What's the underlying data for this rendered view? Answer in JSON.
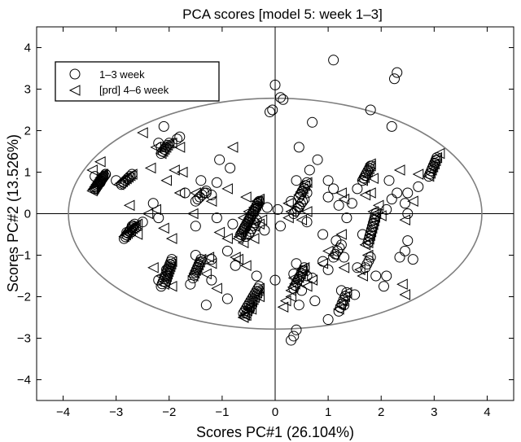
{
  "chart_data": {
    "type": "scatter",
    "title": "PCA scores [model 5: week 1–3]",
    "xlabel": "Scores PC#1 (26.104%)",
    "ylabel": "Scores PC#2 (13.526%)",
    "xlim": [
      -4.5,
      4.5
    ],
    "ylim": [
      -4.5,
      4.5
    ],
    "xticks": [
      -4,
      -3,
      -2,
      -1,
      0,
      1,
      2,
      3,
      4
    ],
    "yticks": [
      -4,
      -3,
      -2,
      -1,
      0,
      1,
      2,
      3,
      4
    ],
    "grid": false,
    "legend_position": "top-left",
    "zero_lines": true,
    "confidence_ellipse": {
      "cx": 0.0,
      "cy": 0.0,
      "rx": 3.9,
      "ry": 2.78
    },
    "series": [
      {
        "name": "1–3 week",
        "marker": "circle",
        "points": [
          [
            1.1,
            3.7
          ],
          [
            2.3,
            3.4
          ],
          [
            2.25,
            3.25
          ],
          [
            0.0,
            3.1
          ],
          [
            0.1,
            2.8
          ],
          [
            0.15,
            2.75
          ],
          [
            -0.05,
            2.5
          ],
          [
            -0.1,
            2.45
          ],
          [
            1.8,
            2.5
          ],
          [
            0.7,
            2.2
          ],
          [
            2.2,
            2.1
          ],
          [
            -2.1,
            2.1
          ],
          [
            -2.2,
            1.7
          ],
          [
            -2.15,
            1.6
          ],
          [
            -1.8,
            1.85
          ],
          [
            -1.85,
            1.8
          ],
          [
            0.45,
            1.6
          ],
          [
            -1.05,
            1.3
          ],
          [
            -0.85,
            1.1
          ],
          [
            0.8,
            1.3
          ],
          [
            0.65,
            1.05
          ],
          [
            0.4,
            0.8
          ],
          [
            -3.4,
            0.9
          ],
          [
            -3.2,
            0.95
          ],
          [
            -3.0,
            0.8
          ],
          [
            -3.3,
            0.75
          ],
          [
            -1.4,
            0.8
          ],
          [
            -1.1,
            0.75
          ],
          [
            -1.7,
            0.5
          ],
          [
            -1.3,
            0.5
          ],
          [
            -1.2,
            0.45
          ],
          [
            1.0,
            0.8
          ],
          [
            0.6,
            0.5
          ],
          [
            1.1,
            0.6
          ],
          [
            1.55,
            0.6
          ],
          [
            2.15,
            0.8
          ],
          [
            2.3,
            0.5
          ],
          [
            2.2,
            0.35
          ],
          [
            2.45,
            0.25
          ],
          [
            2.5,
            0.5
          ],
          [
            2.7,
            0.65
          ],
          [
            0.05,
            0.1
          ],
          [
            -0.15,
            0.15
          ],
          [
            0.3,
            0.3
          ],
          [
            0.45,
            0.15
          ],
          [
            1.0,
            0.4
          ],
          [
            1.2,
            0.2
          ],
          [
            1.45,
            0.25
          ],
          [
            1.35,
            -0.1
          ],
          [
            2.1,
            0.1
          ],
          [
            2.5,
            0.0
          ],
          [
            -2.3,
            0.25
          ],
          [
            -2.2,
            -0.1
          ],
          [
            -2.5,
            -0.2
          ],
          [
            -2.7,
            -0.3
          ],
          [
            -2.8,
            -0.45
          ],
          [
            -1.5,
            -0.3
          ],
          [
            -1.1,
            -0.1
          ],
          [
            -0.8,
            -0.25
          ],
          [
            -0.55,
            -0.55
          ],
          [
            -0.2,
            -0.4
          ],
          [
            0.1,
            -0.3
          ],
          [
            0.6,
            -0.2
          ],
          [
            0.9,
            -0.5
          ],
          [
            1.15,
            -0.65
          ],
          [
            1.65,
            -0.5
          ],
          [
            2.5,
            -0.65
          ],
          [
            2.45,
            -0.9
          ],
          [
            2.35,
            -1.05
          ],
          [
            -1.5,
            -1.0
          ],
          [
            -1.2,
            -1.1
          ],
          [
            -0.9,
            -0.9
          ],
          [
            -0.75,
            -1.25
          ],
          [
            -0.35,
            -1.5
          ],
          [
            0.0,
            -1.6
          ],
          [
            0.4,
            -1.2
          ],
          [
            0.6,
            -1.5
          ],
          [
            0.9,
            -1.15
          ],
          [
            1.0,
            -1.35
          ],
          [
            1.3,
            -1.05
          ],
          [
            1.55,
            -1.3
          ],
          [
            1.9,
            -1.5
          ],
          [
            2.1,
            -1.5
          ],
          [
            2.05,
            -1.75
          ],
          [
            2.6,
            -1.1
          ],
          [
            -2.05,
            -1.35
          ],
          [
            -2.2,
            -1.6
          ],
          [
            -1.6,
            -1.7
          ],
          [
            -1.2,
            -1.6
          ],
          [
            0.5,
            -1.85
          ],
          [
            0.75,
            -2.1
          ],
          [
            1.25,
            -1.85
          ],
          [
            1.5,
            -1.95
          ],
          [
            1.3,
            -2.2
          ],
          [
            0.45,
            -2.2
          ],
          [
            1.0,
            -2.55
          ],
          [
            0.4,
            -2.8
          ],
          [
            0.35,
            -2.95
          ],
          [
            0.3,
            -3.05
          ],
          [
            -1.3,
            -2.2
          ],
          [
            -0.9,
            -2.05
          ],
          [
            0.7,
            -1.55
          ],
          [
            0.35,
            -1.45
          ]
        ]
      },
      {
        "name": "[prd] 4–6 week",
        "marker": "triangle-left",
        "points": [
          [
            -2.5,
            1.95
          ],
          [
            -2.25,
            1.6
          ],
          [
            -1.95,
            1.7
          ],
          [
            -1.8,
            1.6
          ],
          [
            -0.8,
            1.6
          ],
          [
            -3.3,
            1.25
          ],
          [
            -3.45,
            1.05
          ],
          [
            -2.35,
            1.1
          ],
          [
            -1.9,
            1.05
          ],
          [
            -1.75,
            1.0
          ],
          [
            -2.05,
            0.8
          ],
          [
            -1.8,
            0.5
          ],
          [
            -1.5,
            0.5
          ],
          [
            -0.9,
            0.6
          ],
          [
            -0.55,
            0.4
          ],
          [
            -1.2,
            0.3
          ],
          [
            -2.75,
            0.2
          ],
          [
            -2.4,
            0.0
          ],
          [
            -2.25,
            0.1
          ],
          [
            -1.55,
            0.0
          ],
          [
            -0.35,
            0.3
          ],
          [
            -0.4,
            0.15
          ],
          [
            -0.5,
            0.05
          ],
          [
            -0.6,
            -0.1
          ],
          [
            -2.6,
            -0.5
          ],
          [
            -2.1,
            -0.35
          ],
          [
            -1.95,
            -0.6
          ],
          [
            -1.05,
            -0.45
          ],
          [
            -0.9,
            -0.6
          ],
          [
            -0.6,
            -0.7
          ],
          [
            -0.75,
            -1.05
          ],
          [
            -0.55,
            -1.25
          ],
          [
            -0.4,
            -0.3
          ],
          [
            -0.3,
            -0.25
          ],
          [
            -0.25,
            -0.15
          ],
          [
            -0.4,
            -0.6
          ],
          [
            0.25,
            0.25
          ],
          [
            0.3,
            0.05
          ],
          [
            0.25,
            -0.1
          ],
          [
            0.5,
            -0.15
          ],
          [
            0.6,
            0.05
          ],
          [
            1.25,
            0.5
          ],
          [
            1.3,
            0.35
          ],
          [
            1.7,
            0.45
          ],
          [
            1.8,
            0.5
          ],
          [
            1.85,
            0.85
          ],
          [
            1.8,
            1.2
          ],
          [
            2.35,
            1.05
          ],
          [
            2.7,
            0.95
          ],
          [
            3.0,
            1.2
          ],
          [
            3.1,
            1.45
          ],
          [
            1.95,
            0.2
          ],
          [
            1.85,
            0.05
          ],
          [
            2.0,
            -0.05
          ],
          [
            2.45,
            -0.15
          ],
          [
            2.6,
            0.3
          ],
          [
            1.25,
            -0.5
          ],
          [
            1.7,
            -0.75
          ],
          [
            1.75,
            -1.0
          ],
          [
            1.3,
            -1.3
          ],
          [
            1.6,
            -1.35
          ],
          [
            1.65,
            -1.5
          ],
          [
            2.4,
            -1.7
          ],
          [
            2.45,
            -1.95
          ],
          [
            -2.3,
            -1.3
          ],
          [
            -2.15,
            -1.5
          ],
          [
            -1.95,
            -1.75
          ],
          [
            -1.25,
            -1.05
          ],
          [
            -1.2,
            -1.2
          ],
          [
            -1.3,
            -1.45
          ],
          [
            -1.1,
            -1.8
          ],
          [
            -0.7,
            -1.1
          ],
          [
            0.35,
            -1.55
          ],
          [
            0.5,
            -1.35
          ],
          [
            0.7,
            -1.6
          ],
          [
            0.6,
            -1.75
          ],
          [
            0.3,
            -2.0
          ],
          [
            0.2,
            -2.1
          ],
          [
            0.15,
            -2.25
          ],
          [
            -0.3,
            -2.0
          ],
          [
            -0.5,
            -2.25
          ],
          [
            -0.55,
            -2.45
          ],
          [
            -0.45,
            -2.3
          ],
          [
            -0.6,
            -2.5
          ],
          [
            1.0,
            -0.9
          ],
          [
            1.1,
            -1.0
          ],
          [
            0.9,
            -1.2
          ]
        ]
      }
    ],
    "clusters": [
      {
        "marker": "triangle-left",
        "from": [
          -3.45,
          0.55
        ],
        "to": [
          -3.25,
          0.95
        ],
        "n": 14
      },
      {
        "marker": "circle",
        "from": [
          -3.4,
          0.6
        ],
        "to": [
          -3.2,
          0.95
        ],
        "n": 10
      },
      {
        "marker": "triangle-left",
        "from": [
          -2.95,
          0.7
        ],
        "to": [
          -2.7,
          0.95
        ],
        "n": 8
      },
      {
        "marker": "circle",
        "from": [
          -2.9,
          0.7
        ],
        "to": [
          -2.7,
          0.95
        ],
        "n": 6
      },
      {
        "marker": "circle",
        "from": [
          -2.85,
          -0.6
        ],
        "to": [
          -2.65,
          -0.25
        ],
        "n": 9
      },
      {
        "marker": "triangle-left",
        "from": [
          -2.85,
          -0.55
        ],
        "to": [
          -2.6,
          -0.25
        ],
        "n": 9
      },
      {
        "marker": "circle",
        "from": [
          -2.15,
          1.45
        ],
        "to": [
          -2.0,
          1.7
        ],
        "n": 6
      },
      {
        "marker": "triangle-left",
        "from": [
          -2.15,
          1.45
        ],
        "to": [
          -2.0,
          1.7
        ],
        "n": 6
      },
      {
        "marker": "circle",
        "from": [
          -2.15,
          -1.75
        ],
        "to": [
          -1.95,
          -1.1
        ],
        "n": 12
      },
      {
        "marker": "triangle-left",
        "from": [
          -2.1,
          -1.7
        ],
        "to": [
          -1.95,
          -1.15
        ],
        "n": 10
      },
      {
        "marker": "circle",
        "from": [
          -1.55,
          -1.55
        ],
        "to": [
          -1.4,
          -1.1
        ],
        "n": 8
      },
      {
        "marker": "triangle-left",
        "from": [
          -1.55,
          -1.5
        ],
        "to": [
          -1.4,
          -1.1
        ],
        "n": 7
      },
      {
        "marker": "circle",
        "from": [
          -1.5,
          0.3
        ],
        "to": [
          -1.3,
          0.55
        ],
        "n": 6
      },
      {
        "marker": "triangle-left",
        "from": [
          -0.7,
          -0.6
        ],
        "to": [
          -0.3,
          0.35
        ],
        "n": 20
      },
      {
        "marker": "circle",
        "from": [
          -0.65,
          -0.5
        ],
        "to": [
          -0.3,
          0.3
        ],
        "n": 14
      },
      {
        "marker": "circle",
        "from": [
          -0.5,
          -0.5
        ],
        "to": [
          -0.35,
          -0.15
        ],
        "n": 6
      },
      {
        "marker": "triangle-left",
        "from": [
          -0.6,
          -2.5
        ],
        "to": [
          -0.3,
          -1.8
        ],
        "n": 14
      },
      {
        "marker": "circle",
        "from": [
          -0.6,
          -2.4
        ],
        "to": [
          -0.3,
          -1.75
        ],
        "n": 12
      },
      {
        "marker": "circle",
        "from": [
          0.35,
          -1.8
        ],
        "to": [
          0.55,
          -1.3
        ],
        "n": 8
      },
      {
        "marker": "triangle-left",
        "from": [
          0.3,
          -1.85
        ],
        "to": [
          0.55,
          -1.3
        ],
        "n": 8
      },
      {
        "marker": "circle",
        "from": [
          0.35,
          0.0
        ],
        "to": [
          0.55,
          0.35
        ],
        "n": 7
      },
      {
        "marker": "circle",
        "from": [
          0.45,
          0.4
        ],
        "to": [
          0.6,
          0.75
        ],
        "n": 6
      },
      {
        "marker": "triangle-left",
        "from": [
          0.45,
          0.45
        ],
        "to": [
          0.6,
          0.75
        ],
        "n": 5
      },
      {
        "marker": "circle",
        "from": [
          1.65,
          0.8
        ],
        "to": [
          1.8,
          1.15
        ],
        "n": 7
      },
      {
        "marker": "triangle-left",
        "from": [
          1.65,
          0.8
        ],
        "to": [
          1.8,
          1.15
        ],
        "n": 6
      },
      {
        "marker": "circle",
        "from": [
          1.75,
          -0.7
        ],
        "to": [
          1.9,
          0.0
        ],
        "n": 10
      },
      {
        "marker": "triangle-left",
        "from": [
          1.75,
          -0.7
        ],
        "to": [
          1.9,
          0.0
        ],
        "n": 9
      },
      {
        "marker": "circle",
        "from": [
          1.1,
          -1.05
        ],
        "to": [
          1.25,
          -0.75
        ],
        "n": 5
      },
      {
        "marker": "circle",
        "from": [
          2.9,
          0.9
        ],
        "to": [
          3.05,
          1.35
        ],
        "n": 8
      },
      {
        "marker": "triangle-left",
        "from": [
          2.9,
          0.9
        ],
        "to": [
          3.05,
          1.35
        ],
        "n": 7
      },
      {
        "marker": "circle",
        "from": [
          1.2,
          -2.35
        ],
        "to": [
          1.35,
          -1.9
        ],
        "n": 6
      },
      {
        "marker": "triangle-left",
        "from": [
          1.2,
          -2.3
        ],
        "to": [
          1.35,
          -1.9
        ],
        "n": 5
      },
      {
        "marker": "circle",
        "from": [
          1.7,
          -1.3
        ],
        "to": [
          1.8,
          -1.05
        ],
        "n": 4
      }
    ]
  },
  "legend": {
    "items": [
      {
        "label": "1–3 week",
        "marker": "circle"
      },
      {
        "label": "[prd] 4–6 week",
        "marker": "triangle-left"
      }
    ]
  },
  "colors": {
    "marker_stroke": "#000000",
    "ellipse_stroke": "#7f7f7f",
    "axis": "#000000",
    "background": "#ffffff"
  }
}
